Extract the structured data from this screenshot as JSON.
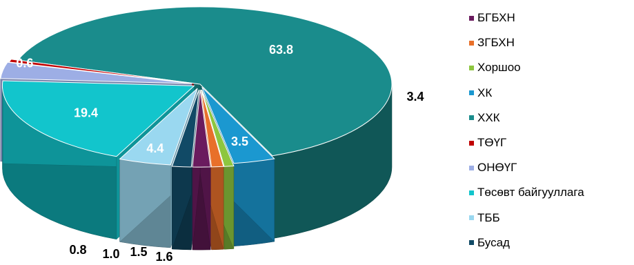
{
  "chart_data": {
    "type": "pie",
    "title": "",
    "style": "3d-exploded",
    "legend_position": "right",
    "categories": [
      "БГБХН",
      "ЗГБХН",
      "Хоршоо",
      "ХК",
      "ХХК",
      "ТӨҮГ",
      "ОНӨҮГ",
      "Төсөвт байгууллага",
      "ТББ",
      "Бусад"
    ],
    "values": [
      1.5,
      1.0,
      0.8,
      3.5,
      63.8,
      0.6,
      3.4,
      19.4,
      4.4,
      1.6
    ],
    "value_labels": [
      "1.5",
      "1.0",
      "0.8",
      "3.5",
      "63.8",
      "0.6",
      "3.4",
      "19.4",
      "4.4",
      "1.6"
    ],
    "colors": [
      "#6A1B5E",
      "#E8702A",
      "#8DC63F",
      "#1B98D0",
      "#1A8C8C",
      "#C00000",
      "#9DAEE5",
      "#12C5CC",
      "#9AD8F0",
      "#114A66"
    ]
  }
}
